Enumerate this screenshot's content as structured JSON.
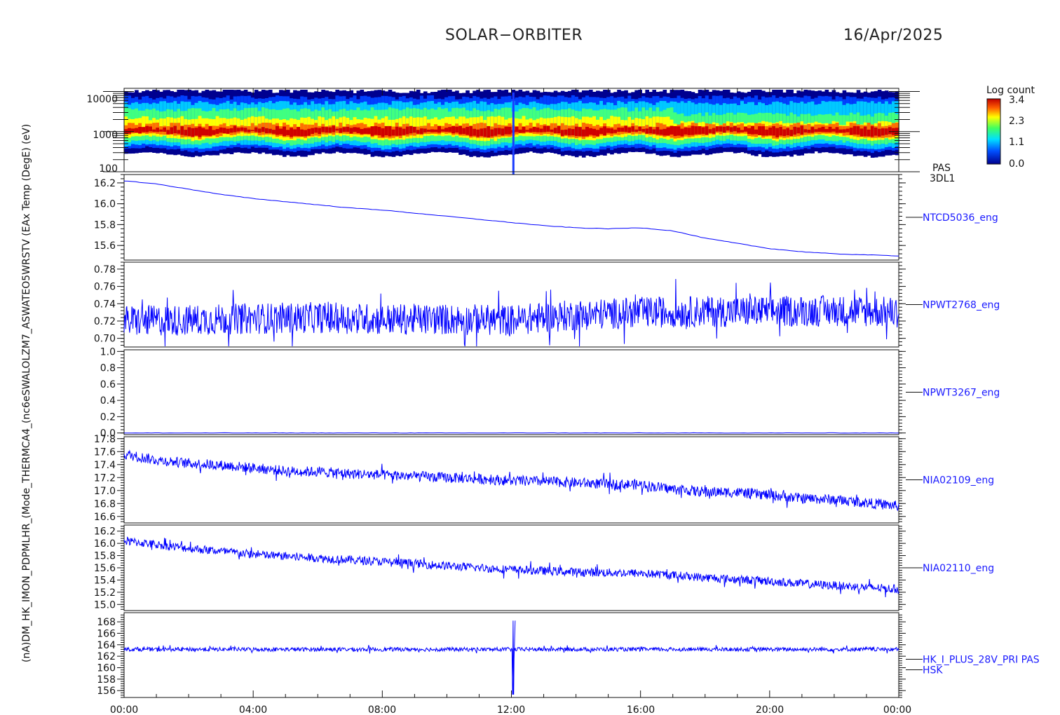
{
  "header": {
    "mission": "SOLAR−ORBITER",
    "date": "16/Apr/2025"
  },
  "colorbar": {
    "title": "Log count",
    "ticks": [
      "3.4",
      "2.3",
      "1.1",
      "0.0"
    ],
    "range": [
      0.0,
      3.4
    ]
  },
  "spectrogram": {
    "label_line1": "PAS",
    "label_line2": "3DL1",
    "yticks": [
      "10000",
      "1000",
      "100"
    ],
    "ytick_values": [
      10000,
      1000,
      100
    ],
    "ylim": [
      100,
      12000
    ],
    "scale": "log"
  },
  "left_axis_label": "(nA)DM_HK_IMON_PDPMLHR_(Mode_THERMCA4_(nc6eSWALOLZM7_ASWATEO5WRSTV (EAx Temp (DegE) (eV)",
  "xaxis": {
    "ticks": [
      "00:00",
      "04:00",
      "08:00",
      "12:00",
      "16:00",
      "20:00",
      "00:00"
    ],
    "range_hours": [
      0,
      24
    ]
  },
  "chart_data": [
    {
      "type": "heatmap",
      "name": "PAS 3DL1",
      "x_hours": [
        0,
        24
      ],
      "y_energy_eV": [
        100,
        12000
      ],
      "peak_energy_eV": 1000,
      "color_value": "Log count",
      "color_range": [
        0.0,
        3.4
      ]
    },
    {
      "type": "line",
      "name": "NTCD5036_eng",
      "yticks": [
        "16.2",
        "16.0",
        "15.8",
        "15.6"
      ],
      "ylim": [
        15.46,
        16.28
      ],
      "x_hours": [
        0,
        1,
        2,
        3,
        4,
        5,
        6,
        7,
        8,
        9,
        10,
        11,
        12,
        13,
        14,
        15,
        16,
        17,
        18,
        19,
        20,
        21,
        22,
        23,
        24
      ],
      "values": [
        16.22,
        16.19,
        16.14,
        16.09,
        16.05,
        16.02,
        15.99,
        15.96,
        15.94,
        15.91,
        15.88,
        15.85,
        15.82,
        15.79,
        15.77,
        15.76,
        15.77,
        15.74,
        15.67,
        15.62,
        15.57,
        15.54,
        15.52,
        15.51,
        15.5
      ]
    },
    {
      "type": "line",
      "name": "NPWT2768_eng",
      "yticks": [
        "0.78",
        "0.76",
        "0.74",
        "0.72",
        "0.70"
      ],
      "ylim": [
        0.69,
        0.788
      ],
      "x_hours": [
        0,
        2,
        4,
        6,
        8,
        10,
        12,
        14,
        16,
        18,
        20,
        22,
        24
      ],
      "values": [
        0.72,
        0.721,
        0.723,
        0.724,
        0.722,
        0.722,
        0.721,
        0.727,
        0.73,
        0.731,
        0.731,
        0.732,
        0.73
      ],
      "noise_amplitude": 0.018
    },
    {
      "type": "line",
      "name": "NPWT3267_eng",
      "yticks": [
        "1.0",
        "0.8",
        "0.6",
        "0.4",
        "0.2",
        "0.0"
      ],
      "ylim": [
        -0.02,
        1.02
      ],
      "x_hours": [
        0,
        24
      ],
      "values": [
        0.0,
        0.0
      ]
    },
    {
      "type": "line",
      "name": "NIA02109_eng",
      "yticks": [
        "17.8",
        "17.6",
        "17.4",
        "17.2",
        "17.0",
        "16.8",
        "16.6"
      ],
      "ylim": [
        16.5,
        17.83
      ],
      "x_hours": [
        0,
        1,
        2,
        3,
        4,
        5,
        6,
        7,
        8,
        9,
        10,
        11,
        12,
        13,
        14,
        15,
        16,
        17,
        18,
        19,
        20,
        21,
        22,
        23,
        24
      ],
      "values": [
        17.56,
        17.47,
        17.42,
        17.39,
        17.35,
        17.3,
        17.29,
        17.26,
        17.24,
        17.22,
        17.2,
        17.18,
        17.15,
        17.14,
        17.12,
        17.1,
        17.09,
        17.02,
        16.98,
        16.97,
        16.93,
        16.88,
        16.86,
        16.81,
        16.76
      ],
      "noise_amplitude": 0.08
    },
    {
      "type": "line",
      "name": "NIA02110_eng",
      "yticks": [
        "16.2",
        "16.0",
        "15.8",
        "15.6",
        "15.4",
        "15.2",
        "15.0"
      ],
      "ylim": [
        14.9,
        16.3
      ],
      "x_hours": [
        0,
        1,
        2,
        3,
        4,
        5,
        6,
        7,
        8,
        9,
        10,
        11,
        12,
        13,
        14,
        15,
        16,
        17,
        18,
        19,
        20,
        21,
        22,
        23,
        24
      ],
      "values": [
        16.04,
        15.98,
        15.92,
        15.87,
        15.82,
        15.79,
        15.76,
        15.73,
        15.7,
        15.67,
        15.63,
        15.6,
        15.57,
        15.55,
        15.53,
        15.52,
        15.51,
        15.48,
        15.44,
        15.41,
        15.38,
        15.34,
        15.31,
        15.28,
        15.25
      ],
      "noise_amplitude": 0.07
    },
    {
      "type": "line",
      "name": "HK_I_PLUS_28V_PRI PAS HSK",
      "label_line1": "HK_I_PLUS_28V_PRI PAS",
      "label_line2": "HSK",
      "yticks": [
        "168",
        "166",
        "164",
        "162",
        "160",
        "158",
        "156"
      ],
      "ylim": [
        154.8,
        169.6
      ],
      "x_hours": [
        0,
        6,
        12,
        18,
        24
      ],
      "values": [
        163.2,
        163.2,
        163.2,
        163.2,
        163.2
      ],
      "spike": {
        "x_hours": 12.05,
        "min": 155.3,
        "max": 168.2
      },
      "noise_amplitude": 0.35
    }
  ]
}
